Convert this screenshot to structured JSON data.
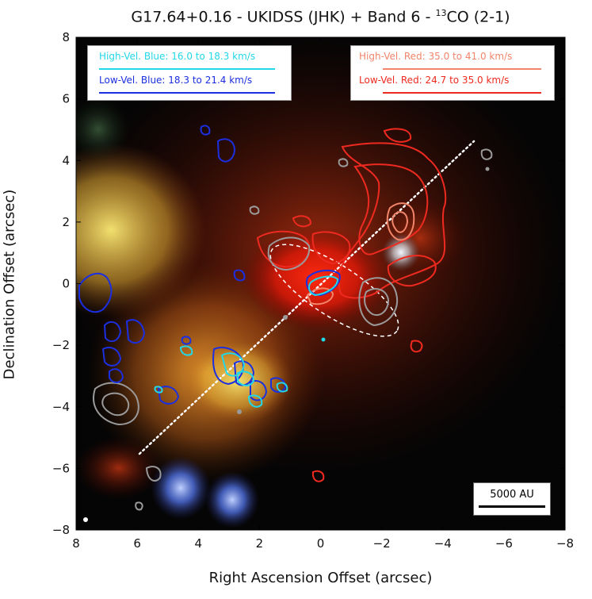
{
  "figure": {
    "title_main": "G17.64+0.16 - UKIDSS (JHK) + Band 6 - ",
    "title_sup": "13",
    "title_tail": "CO (2-1)",
    "xlabel": "Right Ascension Offset (arcsec)",
    "ylabel": "Declination Offset (arcsec)",
    "x_ticks": [
      "8",
      "6",
      "4",
      "2",
      "0",
      "−2",
      "−4",
      "−6",
      "−8"
    ],
    "y_ticks": [
      "8",
      "6",
      "4",
      "2",
      "0",
      "−2",
      "−4",
      "−6",
      "−8"
    ],
    "x_range": [
      8,
      -8
    ],
    "y_range": [
      -8,
      8
    ]
  },
  "legend": {
    "blue": {
      "high_label": "High-Vel. Blue: 16.0 to 18.3 km/s",
      "low_label": "Low-Vel. Blue: 18.3 to 21.4 km/s",
      "high_color": "#22d8e8",
      "low_color": "#1b2fe0"
    },
    "red": {
      "high_label": "High-Vel. Red: 35.0 to 41.0 km/s",
      "low_label": "Low-Vel. Red: 24.7 to 35.0 km/s",
      "high_color": "#f2856a",
      "low_color": "#ee2a20"
    }
  },
  "scalebar": {
    "label": "5000 AU"
  },
  "colors": {
    "continuum_contours": "#9a9a9a",
    "outflow_axis": "#ffffff",
    "background": "#050505"
  }
}
